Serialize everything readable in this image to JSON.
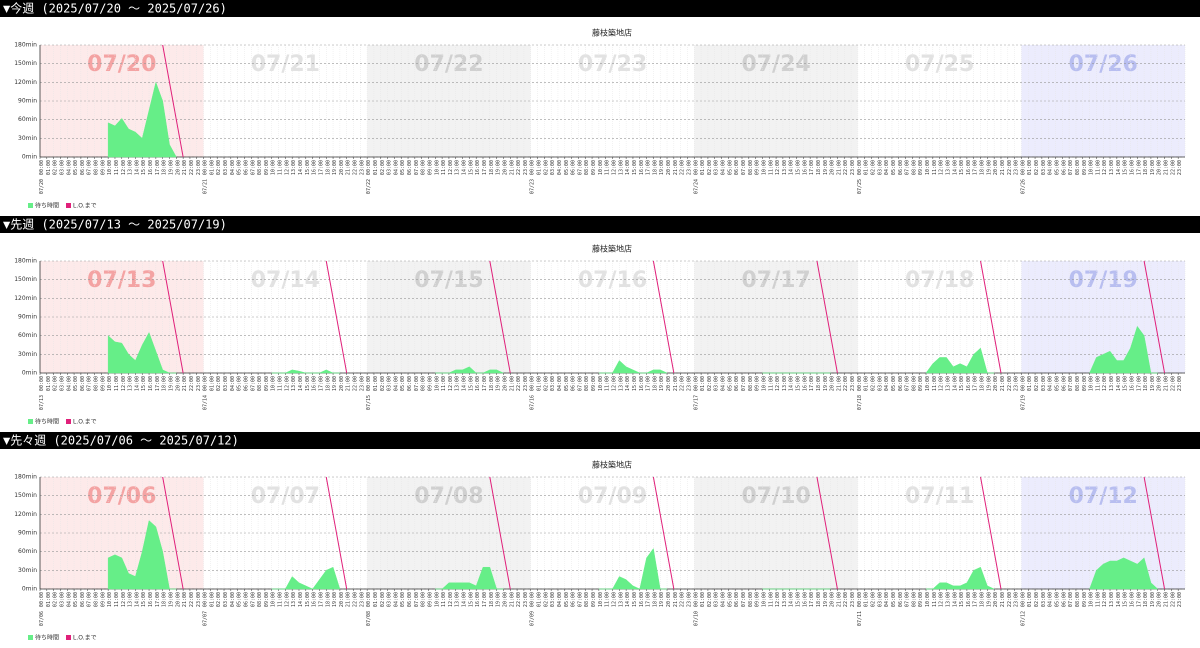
{
  "chart_data": [
    {
      "type": "area",
      "heading": "▼今週 (2025/07/20 〜 2025/07/26)",
      "title": "藤枝築地店",
      "days": [
        {
          "label": "07/20",
          "band": "#fdeaea",
          "color": "#f4a3a3"
        },
        {
          "label": "07/21",
          "band": "#ffffff",
          "color": "#e2e2e2"
        },
        {
          "label": "07/22",
          "band": "#f2f2f2",
          "color": "#d0d0d0"
        },
        {
          "label": "07/23",
          "band": "#ffffff",
          "color": "#e2e2e2"
        },
        {
          "label": "07/24",
          "band": "#f2f2f2",
          "color": "#d0d0d0"
        },
        {
          "label": "07/25",
          "band": "#ffffff",
          "color": "#e2e2e2"
        },
        {
          "label": "07/26",
          "band": "#ececfd",
          "color": "#b8bef0"
        }
      ],
      "hours": [
        "00:00",
        "01:00",
        "02:00",
        "03:00",
        "04:00",
        "05:00",
        "06:00",
        "07:00",
        "08:00",
        "09:00",
        "10:00",
        "11:00",
        "12:00",
        "13:00",
        "14:00",
        "15:00",
        "16:00",
        "17:00",
        "18:00",
        "19:00",
        "20:00",
        "21:00",
        "22:00",
        "23:00"
      ],
      "xlim": [
        0,
        168
      ],
      "ylim": [
        0,
        180
      ],
      "yticks": [
        {
          "value": 0,
          "label": "0min"
        },
        {
          "value": 30,
          "label": "30min"
        },
        {
          "value": 60,
          "label": "60min"
        },
        {
          "value": 90,
          "label": "90min"
        },
        {
          "value": 120,
          "label": "120min"
        },
        {
          "value": 150,
          "label": "150min"
        },
        {
          "value": 180,
          "label": "180min"
        }
      ],
      "grid": true,
      "series": [
        {
          "name": "待ち時間",
          "color": "#66ee88",
          "x": [
            10,
            11,
            12,
            13,
            14,
            15,
            16,
            17,
            18,
            19,
            20
          ],
          "values": [
            55,
            50,
            62,
            45,
            40,
            30,
            75,
            120,
            90,
            20,
            0
          ]
        },
        {
          "name": "L.O.まで",
          "color": "#e0207a",
          "x": [
            18,
            21
          ],
          "values": [
            180,
            0
          ]
        }
      ]
    },
    {
      "type": "area",
      "heading": "▼先週 (2025/07/13 〜 2025/07/19)",
      "title": "藤枝築地店",
      "days": [
        {
          "label": "07/13",
          "band": "#fdeaea",
          "color": "#f4a3a3"
        },
        {
          "label": "07/14",
          "band": "#ffffff",
          "color": "#e2e2e2"
        },
        {
          "label": "07/15",
          "band": "#f2f2f2",
          "color": "#d0d0d0"
        },
        {
          "label": "07/16",
          "band": "#ffffff",
          "color": "#e2e2e2"
        },
        {
          "label": "07/17",
          "band": "#f2f2f2",
          "color": "#d0d0d0"
        },
        {
          "label": "07/18",
          "band": "#ffffff",
          "color": "#e2e2e2"
        },
        {
          "label": "07/19",
          "band": "#ececfd",
          "color": "#b8bef0"
        }
      ],
      "hours": [
        "00:00",
        "01:00",
        "02:00",
        "03:00",
        "04:00",
        "05:00",
        "06:00",
        "07:00",
        "08:00",
        "09:00",
        "10:00",
        "11:00",
        "12:00",
        "13:00",
        "14:00",
        "15:00",
        "16:00",
        "17:00",
        "18:00",
        "19:00",
        "20:00",
        "21:00",
        "22:00",
        "23:00"
      ],
      "xlim": [
        0,
        168
      ],
      "ylim": [
        0,
        180
      ],
      "yticks": [
        {
          "value": 0,
          "label": "0min"
        },
        {
          "value": 30,
          "label": "30min"
        },
        {
          "value": 60,
          "label": "60min"
        },
        {
          "value": 90,
          "label": "90min"
        },
        {
          "value": 120,
          "label": "120min"
        },
        {
          "value": 150,
          "label": "150min"
        },
        {
          "value": 180,
          "label": "180min"
        }
      ],
      "grid": true,
      "series": [
        {
          "name": "待ち時間",
          "color": "#66ee88",
          "x": [
            10,
            11,
            12,
            13,
            14,
            15,
            16,
            17,
            18,
            19,
            20,
            21,
            34,
            35,
            36,
            37,
            38,
            39,
            40,
            41,
            42,
            43,
            44,
            45,
            58,
            59,
            60,
            61,
            62,
            63,
            64,
            65,
            66,
            67,
            68,
            69,
            82,
            83,
            84,
            85,
            86,
            87,
            88,
            89,
            90,
            91,
            92,
            93,
            106,
            107,
            108,
            109,
            110,
            111,
            112,
            113,
            114,
            115,
            116,
            117,
            130,
            131,
            132,
            133,
            134,
            135,
            136,
            137,
            138,
            139,
            140,
            141,
            154,
            155,
            156,
            157,
            158,
            159,
            160,
            161,
            162,
            163,
            164
          ],
          "values": [
            60,
            50,
            48,
            30,
            20,
            45,
            65,
            35,
            5,
            0,
            0,
            null,
            0,
            0,
            0,
            5,
            3,
            0,
            0,
            0,
            5,
            0,
            0,
            null,
            0,
            0,
            0,
            5,
            5,
            10,
            0,
            0,
            5,
            5,
            0,
            null,
            0,
            0,
            0,
            20,
            10,
            5,
            0,
            0,
            5,
            5,
            0,
            null,
            0,
            0,
            0,
            0,
            0,
            0,
            0,
            0,
            0,
            0,
            0,
            null,
            0,
            15,
            25,
            25,
            10,
            15,
            10,
            30,
            40,
            0,
            0,
            null,
            0,
            25,
            30,
            35,
            20,
            20,
            40,
            75,
            60,
            0,
            0
          ]
        },
        {
          "name": "L.O.まで",
          "color": "#e0207a",
          "x": [
            18,
            21,
            21,
            42,
            45,
            45,
            66,
            69,
            69,
            90,
            93,
            93,
            114,
            117,
            117,
            138,
            141,
            141,
            162,
            165
          ],
          "values": [
            180,
            0,
            null,
            180,
            0,
            null,
            180,
            0,
            null,
            180,
            0,
            null,
            180,
            0,
            null,
            180,
            0,
            null,
            180,
            0
          ]
        }
      ]
    },
    {
      "type": "area",
      "heading": "▼先々週 (2025/07/06 〜 2025/07/12)",
      "title": "藤枝築地店",
      "days": [
        {
          "label": "07/06",
          "band": "#fdeaea",
          "color": "#f4a3a3"
        },
        {
          "label": "07/07",
          "band": "#ffffff",
          "color": "#e2e2e2"
        },
        {
          "label": "07/08",
          "band": "#f2f2f2",
          "color": "#d0d0d0"
        },
        {
          "label": "07/09",
          "band": "#ffffff",
          "color": "#e2e2e2"
        },
        {
          "label": "07/10",
          "band": "#f2f2f2",
          "color": "#d0d0d0"
        },
        {
          "label": "07/11",
          "band": "#ffffff",
          "color": "#e2e2e2"
        },
        {
          "label": "07/12",
          "band": "#ececfd",
          "color": "#b8bef0"
        }
      ],
      "hours": [
        "00:00",
        "01:00",
        "02:00",
        "03:00",
        "04:00",
        "05:00",
        "06:00",
        "07:00",
        "08:00",
        "09:00",
        "10:00",
        "11:00",
        "12:00",
        "13:00",
        "14:00",
        "15:00",
        "16:00",
        "17:00",
        "18:00",
        "19:00",
        "20:00",
        "21:00",
        "22:00",
        "23:00"
      ],
      "xlim": [
        0,
        168
      ],
      "ylim": [
        0,
        180
      ],
      "yticks": [
        {
          "value": 0,
          "label": "0min"
        },
        {
          "value": 30,
          "label": "30min"
        },
        {
          "value": 60,
          "label": "60min"
        },
        {
          "value": 90,
          "label": "90min"
        },
        {
          "value": 120,
          "label": "120min"
        },
        {
          "value": 150,
          "label": "150min"
        },
        {
          "value": 180,
          "label": "180min"
        }
      ],
      "grid": true,
      "series": [
        {
          "name": "待ち時間",
          "color": "#66ee88",
          "x": [
            10,
            11,
            12,
            13,
            14,
            15,
            16,
            17,
            18,
            19,
            20,
            21,
            34,
            35,
            36,
            37,
            38,
            39,
            40,
            41,
            42,
            43,
            44,
            45,
            58,
            59,
            60,
            61,
            62,
            63,
            64,
            65,
            66,
            67,
            68,
            69,
            82,
            83,
            84,
            85,
            86,
            87,
            88,
            89,
            90,
            91,
            92,
            93,
            106,
            107,
            108,
            109,
            110,
            111,
            112,
            113,
            114,
            115,
            116,
            117,
            130,
            131,
            132,
            133,
            134,
            135,
            136,
            137,
            138,
            139,
            140,
            141,
            154,
            155,
            156,
            157,
            158,
            159,
            160,
            161,
            162,
            163,
            164
          ],
          "values": [
            50,
            55,
            50,
            25,
            20,
            60,
            110,
            100,
            60,
            0,
            0,
            null,
            0,
            0,
            0,
            20,
            10,
            5,
            0,
            15,
            30,
            35,
            0,
            null,
            0,
            0,
            10,
            10,
            10,
            10,
            5,
            35,
            35,
            0,
            0,
            null,
            0,
            0,
            0,
            20,
            15,
            5,
            0,
            50,
            65,
            0,
            0,
            null,
            0,
            0,
            0,
            0,
            0,
            0,
            0,
            0,
            0,
            0,
            0,
            null,
            0,
            0,
            10,
            10,
            5,
            5,
            10,
            30,
            35,
            5,
            0,
            null,
            0,
            30,
            40,
            45,
            45,
            50,
            45,
            40,
            50,
            10,
            0
          ]
        },
        {
          "name": "L.O.まで",
          "color": "#e0207a",
          "x": [
            18,
            21,
            21,
            42,
            45,
            45,
            66,
            69,
            69,
            90,
            93,
            93,
            114,
            117,
            117,
            138,
            141,
            141,
            162,
            165
          ],
          "values": [
            180,
            0,
            null,
            180,
            0,
            null,
            180,
            0,
            null,
            180,
            0,
            null,
            180,
            0,
            null,
            180,
            0,
            null,
            180,
            0
          ]
        }
      ]
    }
  ]
}
